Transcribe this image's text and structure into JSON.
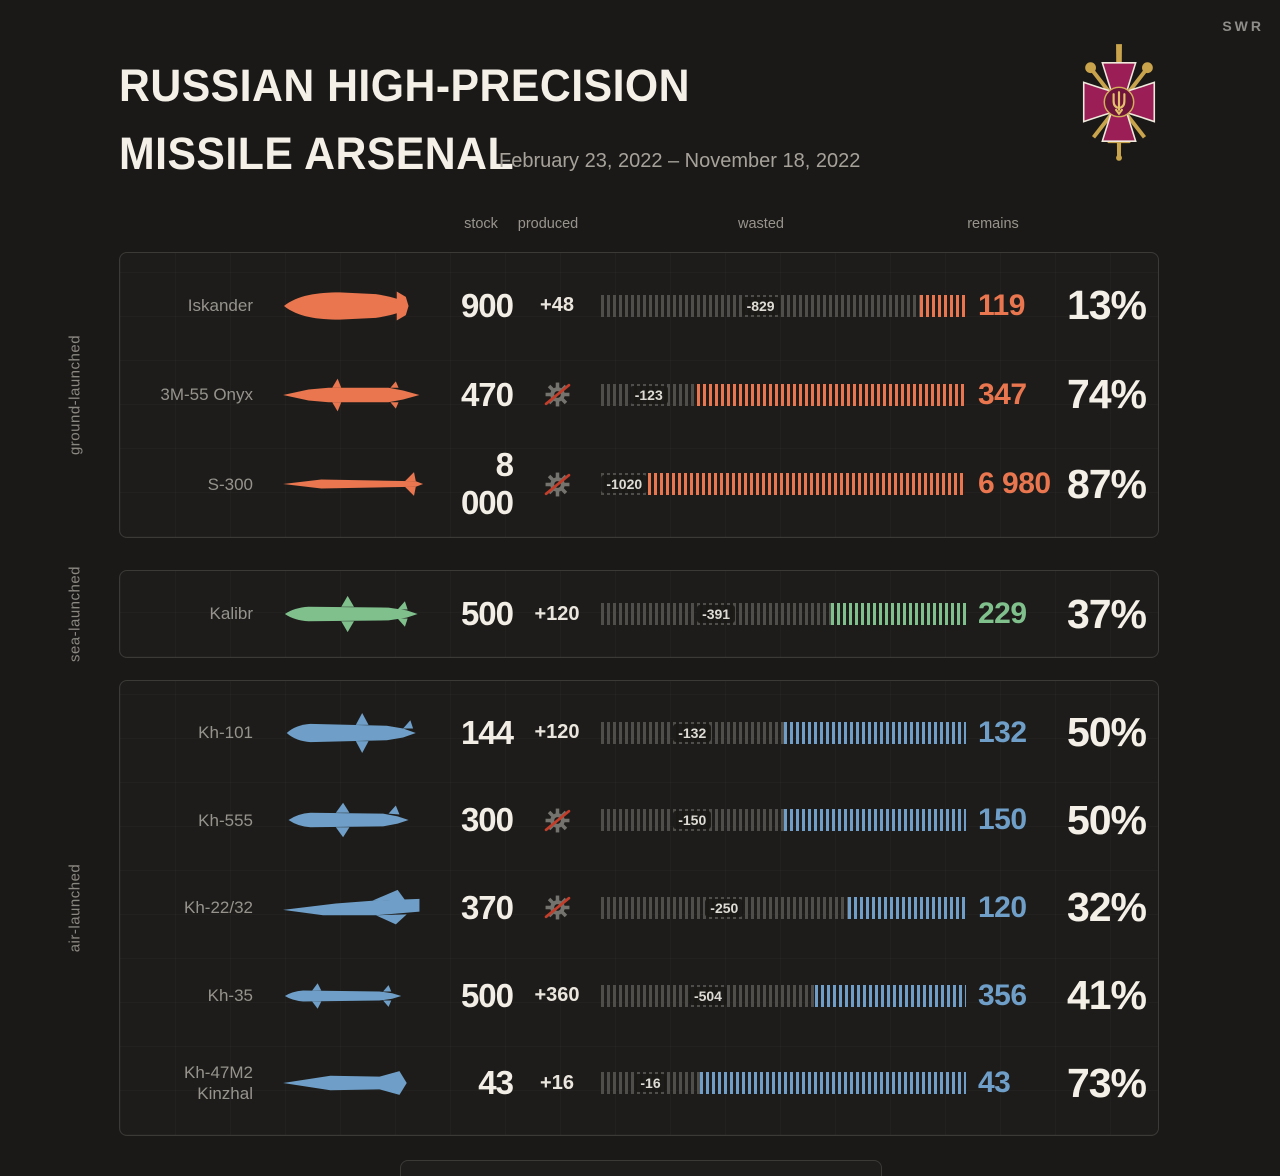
{
  "header": {
    "brand": "SWR",
    "title_line1": "RUSSIAN HIGH-PRECISION",
    "title_line2": "MISSILE ARSENAL",
    "subtitle": "February 23, 2022 – November 18, 2022"
  },
  "columns": {
    "stock": "stock",
    "produced": "produced",
    "wasted": "wasted",
    "remains": "remains"
  },
  "chart_data": {
    "type": "bar",
    "title": "RUSSIAN HIGH-PRECISION MISSILE ARSENAL",
    "subtitle": "February 23, 2022 – November 18, 2022",
    "columns": [
      "stock",
      "produced",
      "wasted",
      "remains"
    ],
    "sections": [
      {
        "id": "ground",
        "label": "ground-launched",
        "color": "#e9764f",
        "rows": [
          {
            "icon": "iskander",
            "name": "Iskander",
            "stock": "900",
            "stock_num": 900,
            "produced": "+48",
            "produced_num": 48,
            "wasted": "-829",
            "wasted_num": 829,
            "remains": "119",
            "remains_num": 119,
            "percent": "13%"
          },
          {
            "icon": "onyx",
            "name": "3M-55 Onyx",
            "stock": "470",
            "stock_num": 470,
            "produced": null,
            "produced_num": 0,
            "wasted": "-123",
            "wasted_num": 123,
            "remains": "347",
            "remains_num": 347,
            "percent": "74%"
          },
          {
            "icon": "s300",
            "name": "S-300",
            "stock": "8 000",
            "stock_num": 8000,
            "produced": null,
            "produced_num": 0,
            "wasted": "-1020",
            "wasted_num": 1020,
            "remains": "6 980",
            "remains_num": 6980,
            "percent": "87%"
          }
        ]
      },
      {
        "id": "sea",
        "label": "sea-launched",
        "color": "#7fc08d",
        "rows": [
          {
            "icon": "kalibr",
            "name": "Kalibr",
            "stock": "500",
            "stock_num": 500,
            "produced": "+120",
            "produced_num": 120,
            "wasted": "-391",
            "wasted_num": 391,
            "remains": "229",
            "remains_num": 229,
            "percent": "37%"
          }
        ]
      },
      {
        "id": "air",
        "label": "air-launched",
        "color": "#6f9fc8",
        "rows": [
          {
            "icon": "kh101",
            "name": "Kh-101",
            "stock": "144",
            "stock_num": 144,
            "produced": "+120",
            "produced_num": 120,
            "wasted": "-132",
            "wasted_num": 132,
            "remains": "132",
            "remains_num": 132,
            "percent": "50%"
          },
          {
            "icon": "kh555",
            "name": "Kh-555",
            "stock": "300",
            "stock_num": 300,
            "produced": null,
            "produced_num": 0,
            "wasted": "-150",
            "wasted_num": 150,
            "remains": "150",
            "remains_num": 150,
            "percent": "50%"
          },
          {
            "icon": "kh2232",
            "name": "Kh-22/32",
            "stock": "370",
            "stock_num": 370,
            "produced": null,
            "produced_num": 0,
            "wasted": "-250",
            "wasted_num": 250,
            "remains": "120",
            "remains_num": 120,
            "percent": "32%"
          },
          {
            "icon": "kh35",
            "name": "Kh-35",
            "stock": "500",
            "stock_num": 500,
            "produced": "+360",
            "produced_num": 360,
            "wasted": "-504",
            "wasted_num": 504,
            "remains": "356",
            "remains_num": 356,
            "percent": "41%"
          },
          {
            "icon": "kinzhal",
            "name": "Kh-47M2 Kinzhal",
            "stock": "43",
            "stock_num": 43,
            "produced": "+16",
            "produced_num": 16,
            "wasted": "-16",
            "wasted_num": 16,
            "remains": "43",
            "remains_num": 43,
            "percent": "73%"
          }
        ]
      }
    ]
  }
}
